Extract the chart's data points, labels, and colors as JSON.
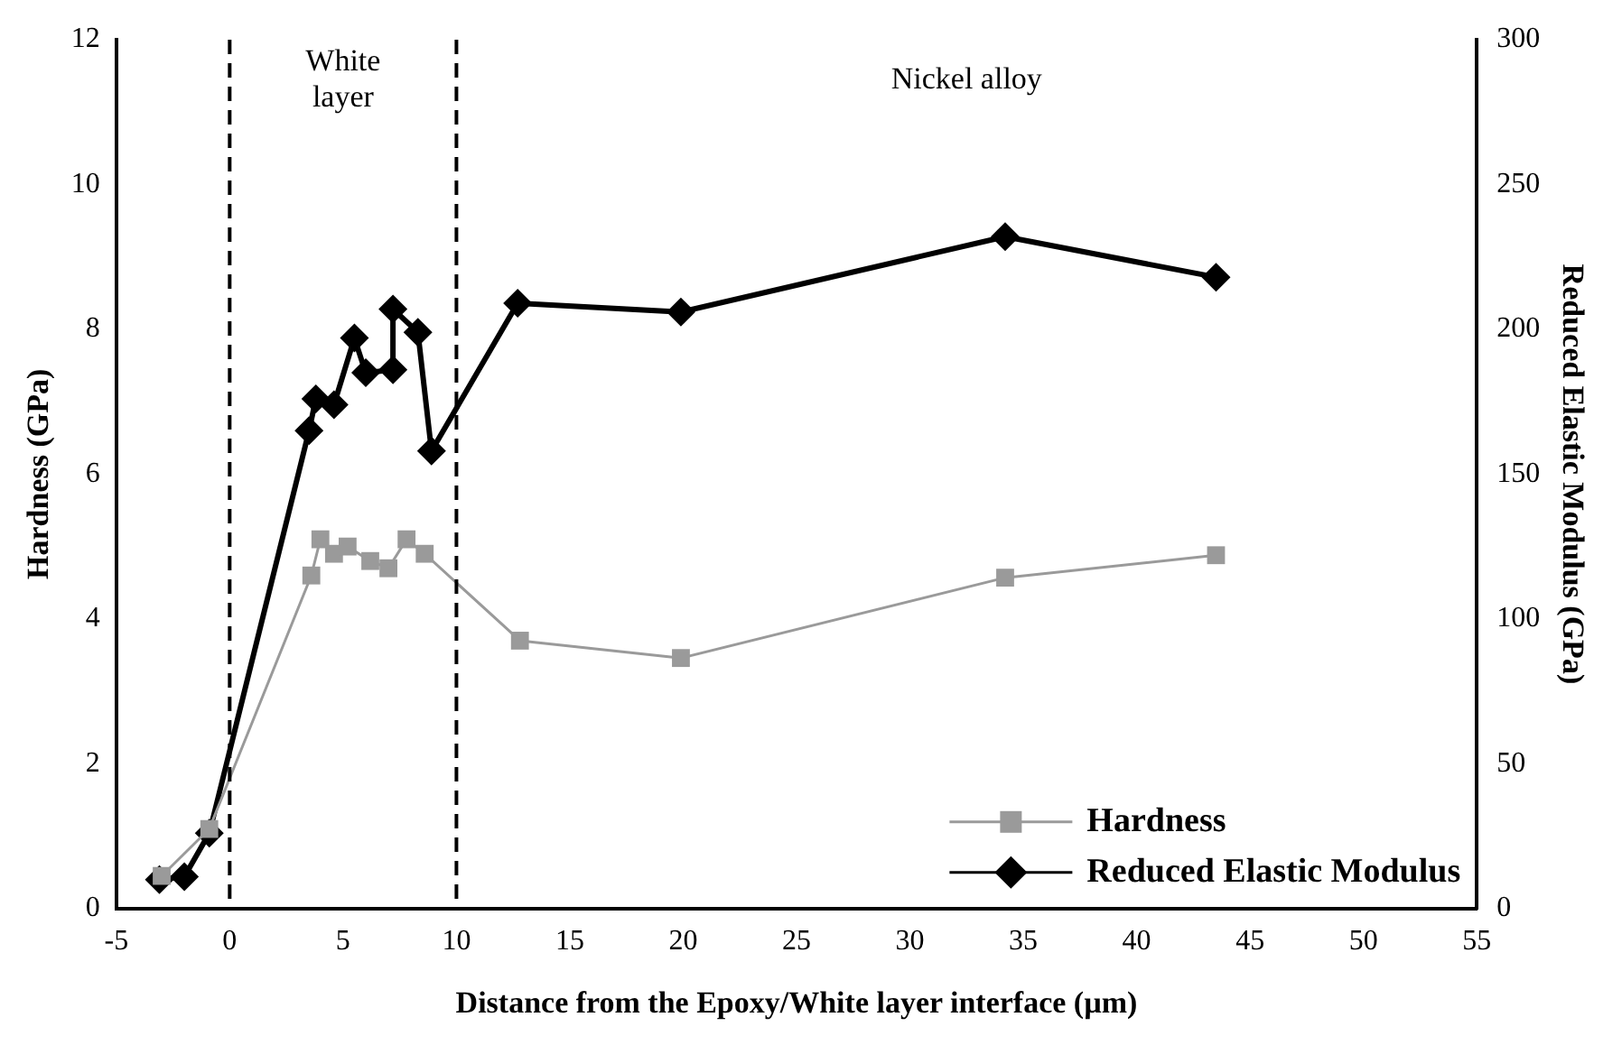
{
  "chart_data": {
    "type": "line",
    "xlabel": "Distance from the Epoxy/White layer interface (µm)",
    "ylabel": "Hardness (GPa)",
    "y2label": "Reduced Elastic Modulus (GPa)",
    "xlim": [
      -5,
      55
    ],
    "xticks": [
      -5,
      0,
      5,
      10,
      15,
      20,
      25,
      30,
      35,
      40,
      45,
      50,
      55
    ],
    "ylim": [
      0,
      12
    ],
    "yticks": [
      0,
      2,
      4,
      6,
      8,
      10,
      12
    ],
    "y2lim": [
      0,
      300
    ],
    "y2ticks": [
      0,
      50,
      100,
      150,
      200,
      250,
      300
    ],
    "grid": false,
    "legend": "bottom right",
    "line_style": "solid",
    "series": [
      {
        "name": "Hardness",
        "color": "#9a9a9a",
        "marker": "square",
        "x": [
          -3,
          -0.9,
          3.6,
          4.0,
          4.6,
          5.2,
          6.2,
          7.0,
          7.8,
          8.6,
          12.8,
          19.9,
          34.2,
          43.5
        ],
        "values": [
          0.45,
          1.1,
          4.6,
          5.1,
          4.9,
          5.0,
          4.8,
          4.7,
          5.1,
          4.9,
          3.7,
          3.46,
          4.57,
          4.88
        ]
      },
      {
        "name": "Reduced Elastic Modulus",
        "color": "#000000",
        "marker": "diamond",
        "axis": "y2",
        "x": [
          -3.1,
          -2,
          -0.9,
          3.5,
          3.8,
          4.6,
          5.5,
          6,
          7.2,
          7.2,
          8.3,
          8.9,
          12.7,
          19.9,
          34.2,
          43.5
        ],
        "values": [
          10,
          11,
          26,
          165,
          176,
          174,
          197,
          185,
          186,
          207,
          199,
          158,
          209,
          206,
          232,
          218
        ]
      }
    ],
    "ref_lines": [
      {
        "axis": "x",
        "value": 0,
        "label": null,
        "line_style": "dashed",
        "color": "#000000"
      },
      {
        "axis": "x",
        "value": 10,
        "label": null,
        "line_style": "dashed",
        "color": "#000000"
      }
    ],
    "annotations": [
      "White\nlayer",
      "Nickel alloy"
    ]
  }
}
